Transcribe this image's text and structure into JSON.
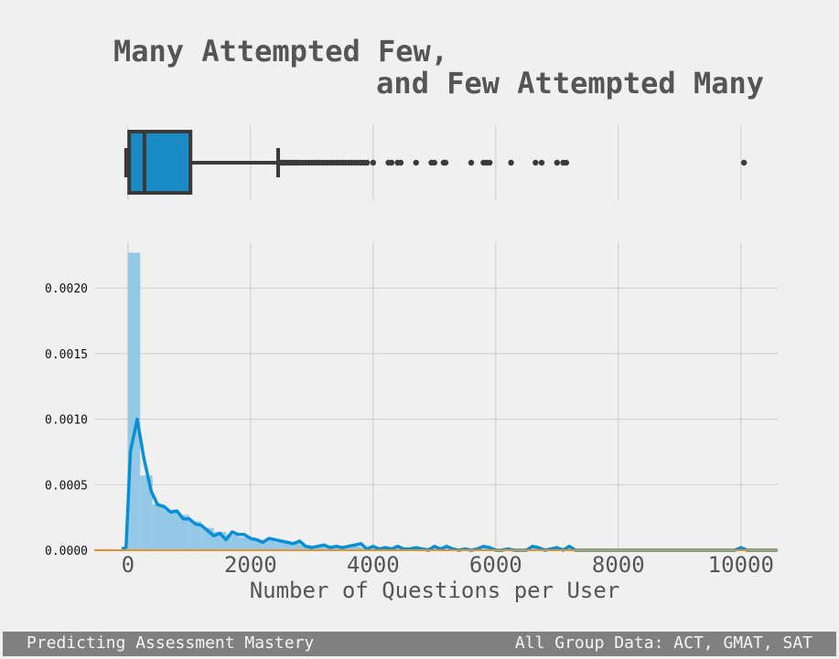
{
  "footer": {
    "left": "Predicting Assessment Mastery",
    "right": "All Group Data: ACT, GMAT, SAT"
  },
  "colors": {
    "background": "#f0f0f0",
    "grid": "#cccccc",
    "box_fill": "#1a8bc4",
    "box_line": "#3a3a3a",
    "hist_fill": "#93c8e6",
    "kde_line": "#0a8fd4",
    "baseline": "#e3912e",
    "footer_bg": "#808080"
  },
  "chart_data": [
    {
      "type": "box",
      "title_lines": [
        "Many Attempted Few,",
        "and Few Attempted Many"
      ],
      "xlim": [
        -550,
        10600
      ],
      "grid": true,
      "stats": {
        "min": 0,
        "q1": 20,
        "median": 270,
        "q3": 1020,
        "whisker_high": 2450
      },
      "outliers": [
        2500,
        2530,
        2560,
        2600,
        2640,
        2680,
        2720,
        2760,
        2800,
        2850,
        2900,
        2950,
        3000,
        3050,
        3100,
        3150,
        3200,
        3250,
        3300,
        3350,
        3400,
        3450,
        3500,
        3550,
        3600,
        3650,
        3700,
        3750,
        3800,
        3850,
        3900,
        4000,
        4250,
        4300,
        4400,
        4450,
        4700,
        4950,
        5000,
        5150,
        5180,
        5600,
        5800,
        5850,
        5900,
        6250,
        6650,
        6750,
        7000,
        7100,
        7150,
        10050
      ]
    },
    {
      "type": "histogram+kde",
      "xlabel": "Number of Questions per User",
      "ylabel": "",
      "xlim": [
        -550,
        10600
      ],
      "ylim": [
        0,
        0.00235
      ],
      "grid": true,
      "x_ticks": [
        0,
        2000,
        4000,
        6000,
        8000,
        10000
      ],
      "x_tick_labels": [
        "0",
        "2000",
        "4000",
        "6000",
        "8000",
        "10000"
      ],
      "y_ticks": [
        0,
        0.0005,
        0.001,
        0.0015,
        0.002
      ],
      "y_tick_labels": [
        "0.0000",
        "0.0005",
        "0.0010",
        "0.0015",
        "0.0020"
      ],
      "hist_bins": [
        [
          0,
          200,
          0.00227
        ],
        [
          200,
          400,
          0.00057
        ],
        [
          400,
          600,
          0.00035
        ],
        [
          600,
          800,
          0.00031
        ],
        [
          800,
          1000,
          0.00027
        ],
        [
          1000,
          1200,
          0.00022
        ],
        [
          1200,
          1400,
          0.00017
        ],
        [
          1400,
          1600,
          0.00014
        ],
        [
          1600,
          1800,
          0.00012
        ],
        [
          1800,
          2000,
          0.0001
        ],
        [
          2000,
          2200,
          8e-05
        ],
        [
          2200,
          2400,
          7e-05
        ],
        [
          2400,
          2600,
          6e-05
        ],
        [
          2600,
          2800,
          5e-05
        ],
        [
          2800,
          3000,
          4e-05
        ],
        [
          3000,
          3200,
          3e-05
        ],
        [
          3200,
          3400,
          3e-05
        ],
        [
          3400,
          3600,
          2e-05
        ],
        [
          3600,
          3800,
          3e-05
        ],
        [
          3800,
          4000,
          2e-05
        ],
        [
          4000,
          4200,
          2e-05
        ],
        [
          4200,
          4400,
          2e-05
        ],
        [
          4400,
          4600,
          2e-05
        ],
        [
          4600,
          4800,
          1e-05
        ],
        [
          4800,
          5000,
          2e-05
        ],
        [
          5000,
          5200,
          2e-05
        ],
        [
          5200,
          5400,
          1e-05
        ],
        [
          5400,
          5600,
          1e-05
        ],
        [
          5600,
          5800,
          1e-05
        ],
        [
          5800,
          6000,
          2e-05
        ],
        [
          6000,
          6200,
          1e-05
        ],
        [
          6200,
          6400,
          1e-05
        ],
        [
          6400,
          6600,
          1e-05
        ],
        [
          6600,
          6800,
          2e-05
        ],
        [
          6800,
          7000,
          1e-05
        ],
        [
          7000,
          7200,
          2e-05
        ],
        [
          7200,
          7400,
          1e-05
        ],
        [
          9800,
          10000,
          1e-05
        ],
        [
          10000,
          10200,
          1e-05
        ]
      ],
      "kde": {
        "x": [
          -100,
          -30,
          40,
          150,
          260,
          380,
          480,
          600,
          700,
          800,
          900,
          1000,
          1100,
          1200,
          1300,
          1400,
          1500,
          1600,
          1700,
          1800,
          1900,
          2000,
          2100,
          2200,
          2300,
          2400,
          2500,
          2600,
          2700,
          2800,
          2900,
          3000,
          3100,
          3200,
          3300,
          3400,
          3500,
          3600,
          3700,
          3800,
          3900,
          4000,
          4100,
          4200,
          4300,
          4400,
          4500,
          4600,
          4700,
          4800,
          4900,
          5000,
          5100,
          5200,
          5300,
          5400,
          5500,
          5600,
          5700,
          5800,
          5900,
          6000,
          6100,
          6200,
          6300,
          6400,
          6500,
          6600,
          6700,
          6800,
          6900,
          7000,
          7100,
          7200,
          7300,
          7400,
          7500,
          8000,
          8500,
          9000,
          9500,
          9900,
          10000,
          10100,
          10200,
          10400,
          10600
        ],
        "y": [
          1e-05,
          2e-05,
          0.00075,
          0.001,
          0.0007,
          0.00045,
          0.00035,
          0.00033,
          0.00029,
          0.0003,
          0.00024,
          0.00024,
          0.0002,
          0.00019,
          0.00015,
          0.00011,
          0.00013,
          8e-05,
          0.00014,
          0.00012,
          0.00012,
          9e-05,
          8e-05,
          6e-05,
          9e-05,
          8e-05,
          7e-05,
          6e-05,
          5e-05,
          7e-05,
          3e-05,
          2e-05,
          3e-05,
          4e-05,
          2e-05,
          3e-05,
          2e-05,
          3e-05,
          4e-05,
          5e-05,
          1e-05,
          3e-05,
          1e-05,
          2e-05,
          1e-05,
          3e-05,
          1e-05,
          1e-05,
          2e-05,
          1e-05,
          0.0,
          3e-05,
          1e-05,
          3e-05,
          1e-05,
          0.0,
          1e-05,
          0.0,
          1e-05,
          3e-05,
          2e-05,
          0.0,
          0.0,
          1e-05,
          0.0,
          0.0,
          0.0,
          3e-05,
          2e-05,
          0.0,
          1e-05,
          2e-05,
          0.0,
          3e-05,
          0.0,
          0.0,
          0.0,
          0.0,
          0.0,
          0.0,
          0.0,
          0.0,
          2e-05,
          0.0,
          0.0,
          0.0,
          0.0
        ]
      }
    }
  ]
}
